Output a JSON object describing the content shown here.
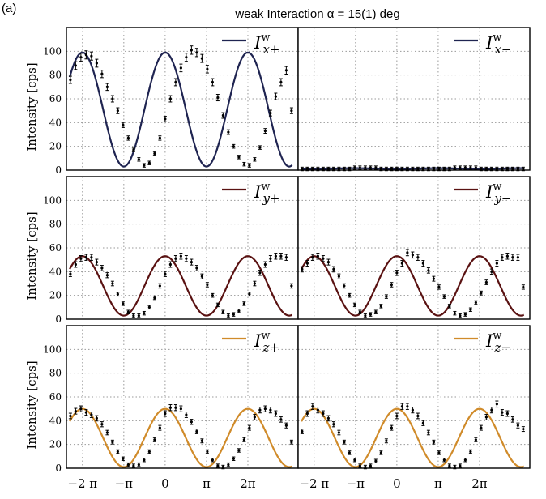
{
  "figure": {
    "panel_label": "(a)",
    "title": "weak Interaction α = 15(1) deg"
  },
  "axes": {
    "ylabel": "Intensity [cps]",
    "ylim": [
      0,
      120
    ],
    "yticks": [
      0,
      20,
      40,
      60,
      80,
      100
    ],
    "xlim": [
      -7.5,
      10.1
    ],
    "xticks": [
      -6.283,
      -3.1416,
      0,
      3.1416,
      6.283
    ],
    "xtick_labels": [
      "−2 π",
      "−π",
      "0",
      "π",
      "2π"
    ]
  },
  "chart_data": [
    {
      "type": "scatter",
      "title": "",
      "legend": {
        "name": "I^w_{x+}",
        "placement": "top-right"
      },
      "color": "#1f2451",
      "grid": true,
      "fit": {
        "model": "A*cos^2(x/2)+C",
        "amplitude": 96,
        "offset": 3
      },
      "x": [
        -7.2,
        -6.8,
        -6.4,
        -6.0,
        -5.6,
        -5.2,
        -4.8,
        -4.4,
        -4.0,
        -3.6,
        -3.2,
        -2.8,
        -2.4,
        -2.0,
        -1.6,
        -1.2,
        -0.8,
        -0.4,
        0.0,
        0.4,
        0.8,
        1.2,
        1.6,
        2.0,
        2.4,
        2.8,
        3.2,
        3.6,
        4.0,
        4.4,
        4.8,
        5.2,
        5.6,
        6.0,
        6.4,
        6.8,
        7.2,
        7.6,
        8.0,
        8.4,
        8.8,
        9.2,
        9.6
      ],
      "values": [
        76,
        88,
        95,
        97,
        96,
        90,
        81,
        70,
        60,
        50,
        38,
        27,
        17,
        9,
        4,
        6,
        14,
        27,
        43,
        60,
        74,
        86,
        95,
        101,
        99,
        94,
        85,
        74,
        61,
        46,
        32,
        20,
        11,
        5,
        4,
        9,
        19,
        33,
        48,
        62,
        74,
        84,
        50
      ],
      "series": [
        {
          "name": "I^w_{x+}"
        }
      ]
    },
    {
      "type": "scatter",
      "title": "",
      "legend": {
        "name": "I^w_{x−}",
        "placement": "top-right"
      },
      "color": "#1f2451",
      "grid": true,
      "fit": {
        "model": "small oscillation",
        "amplitude": 1,
        "offset": 1
      },
      "x": [
        -7.2,
        -6.8,
        -6.4,
        -6.0,
        -5.6,
        -5.2,
        -4.8,
        -4.4,
        -4.0,
        -3.6,
        -3.2,
        -2.8,
        -2.4,
        -2.0,
        -1.6,
        -1.2,
        -0.8,
        -0.4,
        0.0,
        0.4,
        0.8,
        1.2,
        1.6,
        2.0,
        2.4,
        2.8,
        3.2,
        3.6,
        4.0,
        4.4,
        4.8,
        5.2,
        5.6,
        6.0,
        6.4,
        6.8,
        7.2,
        7.6,
        8.0,
        8.4,
        8.8,
        9.2,
        9.6
      ],
      "values": [
        1,
        1,
        1,
        1,
        1,
        1,
        1,
        1,
        1,
        1,
        2,
        2,
        2,
        2,
        2,
        1,
        1,
        1,
        1,
        1,
        1,
        1,
        1,
        1,
        1,
        1,
        1,
        1,
        1,
        2,
        2,
        2,
        2,
        2,
        1,
        1,
        1,
        1,
        1,
        1,
        1,
        1,
        1
      ],
      "series": [
        {
          "name": "I^w_{x−}"
        }
      ]
    },
    {
      "type": "scatter",
      "title": "",
      "legend": {
        "name": "I^w_{y+}",
        "placement": "top-right"
      },
      "color": "#5a1212",
      "grid": true,
      "fit": {
        "model": "A*cos^2(x/2)+C",
        "amplitude": 50,
        "offset": 3
      },
      "x": [
        -7.2,
        -6.8,
        -6.4,
        -6.0,
        -5.6,
        -5.2,
        -4.8,
        -4.4,
        -4.0,
        -3.6,
        -3.2,
        -2.8,
        -2.4,
        -2.0,
        -1.6,
        -1.2,
        -0.8,
        -0.4,
        0.0,
        0.4,
        0.8,
        1.2,
        1.6,
        2.0,
        2.4,
        2.8,
        3.2,
        3.6,
        4.0,
        4.4,
        4.8,
        5.2,
        5.6,
        6.0,
        6.4,
        6.8,
        7.2,
        7.6,
        8.0,
        8.4,
        8.8,
        9.2,
        9.6
      ],
      "values": [
        38,
        46,
        51,
        52,
        52,
        48,
        43,
        37,
        30,
        21,
        13,
        6,
        3,
        3,
        5,
        10,
        18,
        28,
        38,
        46,
        51,
        53,
        51,
        48,
        43,
        36,
        29,
        20,
        12,
        6,
        3,
        4,
        7,
        13,
        21,
        30,
        39,
        46,
        51,
        53,
        53,
        52,
        28
      ],
      "series": [
        {
          "name": "I^w_{y+}"
        }
      ]
    },
    {
      "type": "scatter",
      "title": "",
      "legend": {
        "name": "I^w_{y−}",
        "placement": "top-right"
      },
      "color": "#5a1212",
      "grid": true,
      "fit": {
        "model": "A*cos^2(x/2)+C",
        "amplitude": 50,
        "offset": 3
      },
      "x": [
        -7.2,
        -6.8,
        -6.4,
        -6.0,
        -5.6,
        -5.2,
        -4.8,
        -4.4,
        -4.0,
        -3.6,
        -3.2,
        -2.8,
        -2.4,
        -2.0,
        -1.6,
        -1.2,
        -0.8,
        -0.4,
        0.0,
        0.4,
        0.8,
        1.2,
        1.6,
        2.0,
        2.4,
        2.8,
        3.2,
        3.6,
        4.0,
        4.4,
        4.8,
        5.2,
        5.6,
        6.0,
        6.4,
        6.8,
        7.2,
        7.6,
        8.0,
        8.4,
        8.8,
        9.2,
        9.6
      ],
      "values": [
        42,
        47,
        52,
        53,
        51,
        48,
        42,
        36,
        28,
        20,
        12,
        6,
        3,
        4,
        6,
        11,
        19,
        29,
        39,
        47,
        56,
        54,
        52,
        47,
        41,
        34,
        27,
        19,
        11,
        5,
        3,
        4,
        8,
        14,
        22,
        31,
        40,
        47,
        52,
        53,
        52,
        52,
        27
      ],
      "series": [
        {
          "name": "I^w_{y−}"
        }
      ]
    },
    {
      "type": "scatter",
      "title": "",
      "legend": {
        "name": "I^w_{z+}",
        "placement": "top-right"
      },
      "color": "#d08b2a",
      "grid": true,
      "fit": {
        "model": "A*cos^2(x/2)+C",
        "amplitude": 49,
        "offset": 1
      },
      "x": [
        -7.2,
        -6.8,
        -6.4,
        -6.0,
        -5.6,
        -5.2,
        -4.8,
        -4.4,
        -4.0,
        -3.6,
        -3.2,
        -2.8,
        -2.4,
        -2.0,
        -1.6,
        -1.2,
        -0.8,
        -0.4,
        0.0,
        0.4,
        0.8,
        1.2,
        1.6,
        2.0,
        2.4,
        2.8,
        3.2,
        3.6,
        4.0,
        4.4,
        4.8,
        5.2,
        5.6,
        6.0,
        6.4,
        6.8,
        7.2,
        7.6,
        8.0,
        8.4,
        8.8,
        9.2,
        9.6
      ],
      "values": [
        44,
        48,
        50,
        47,
        45,
        42,
        37,
        30,
        22,
        14,
        8,
        3,
        2,
        3,
        7,
        14,
        24,
        34,
        46,
        51,
        51,
        50,
        45,
        39,
        31,
        23,
        14,
        7,
        2,
        1,
        3,
        8,
        15,
        24,
        34,
        43,
        49,
        50,
        49,
        46,
        41,
        36,
        22
      ],
      "series": [
        {
          "name": "I^w_{z+}"
        }
      ]
    },
    {
      "type": "scatter",
      "title": "",
      "legend": {
        "name": "I^w_{z−}",
        "placement": "top-right"
      },
      "color": "#d08b2a",
      "grid": true,
      "fit": {
        "model": "A*cos^2(x/2)+C",
        "amplitude": 49,
        "offset": 1
      },
      "x": [
        -7.2,
        -6.8,
        -6.4,
        -6.0,
        -5.6,
        -5.2,
        -4.8,
        -4.4,
        -4.0,
        -3.6,
        -3.2,
        -2.8,
        -2.4,
        -2.0,
        -1.6,
        -1.2,
        -0.8,
        -0.4,
        0.0,
        0.4,
        0.8,
        1.2,
        1.6,
        2.0,
        2.4,
        2.8,
        3.2,
        3.6,
        4.0,
        4.4,
        4.8,
        5.2,
        5.6,
        6.0,
        6.4,
        6.8,
        7.2,
        7.6,
        8.0,
        8.4,
        8.8,
        9.2,
        9.6
      ],
      "values": [
        31,
        46,
        52,
        49,
        46,
        42,
        37,
        30,
        22,
        13,
        7,
        2,
        1,
        2,
        6,
        13,
        23,
        34,
        44,
        52,
        52,
        49,
        44,
        38,
        30,
        22,
        13,
        7,
        2,
        1,
        2,
        7,
        14,
        24,
        34,
        43,
        49,
        54,
        47,
        46,
        41,
        36,
        33
      ],
      "series": [
        {
          "name": "I^w_{z−}"
        }
      ]
    }
  ]
}
